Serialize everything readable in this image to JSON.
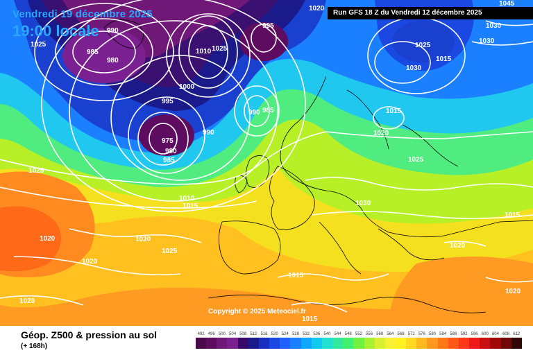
{
  "header": {
    "date": "Vendredi 19 décembre 2025",
    "local_time": "19:00 locale",
    "run_info": "Run GFS 18 Z du Vendredi 12 décembre 2025"
  },
  "map": {
    "copyright": "Copyright © 2025 Meteociel.fr",
    "isobar_labels": [
      "1020",
      "1045",
      "1030",
      "1025",
      "990",
      "985",
      "980",
      "995",
      "1010",
      "1025",
      "1000",
      "995",
      "985",
      "990",
      "975",
      "980",
      "985",
      "990",
      "1025",
      "1030",
      "1015",
      "1030",
      "1015",
      "1020",
      "1025",
      "1030",
      "1010",
      "1015",
      "1020",
      "1020",
      "1025",
      "1020",
      "1025",
      "1015",
      "1015",
      "1020",
      "1020",
      "1015",
      "1020"
    ]
  },
  "footer": {
    "product": "Géop. Z500 & pression au sol",
    "forecast": "(+ 168h)"
  },
  "legend": {
    "values": [
      "492",
      "496",
      "500",
      "504",
      "508",
      "512",
      "516",
      "520",
      "524",
      "528",
      "532",
      "536",
      "540",
      "544",
      "548",
      "552",
      "556",
      "560",
      "564",
      "568",
      "572",
      "576",
      "580",
      "584",
      "588",
      "592",
      "596",
      "600",
      "604",
      "608",
      "612"
    ],
    "colors": [
      "#4a0a4a",
      "#5e0c60",
      "#701878",
      "#7a2090",
      "#3a0a6a",
      "#1a1a8a",
      "#1830c0",
      "#1a48e0",
      "#2060ff",
      "#1a80ff",
      "#10a8ff",
      "#10c8f0",
      "#20e0d0",
      "#30e8a0",
      "#40f070",
      "#70f040",
      "#a8f030",
      "#d8f030",
      "#f8f030",
      "#fff020",
      "#ffd820",
      "#ffb820",
      "#ff9820",
      "#ff7818",
      "#ff5818",
      "#ff3818",
      "#f01818",
      "#c81010",
      "#a00808",
      "#700808",
      "#300808"
    ]
  }
}
